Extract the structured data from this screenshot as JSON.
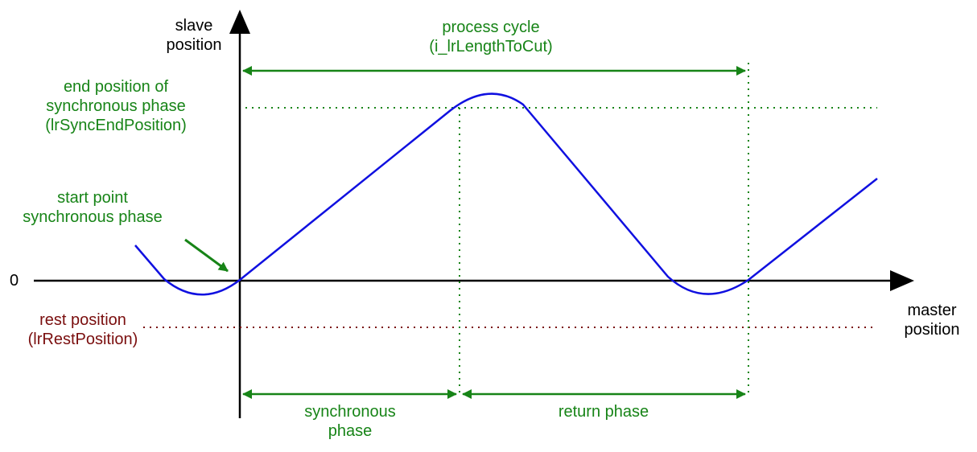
{
  "axes": {
    "y_label": [
      "slave",
      "position"
    ],
    "x_label": [
      "master",
      "position"
    ],
    "zero_label": "0"
  },
  "annotations": {
    "process_cycle": [
      "process cycle",
      "(i_lrLengthToCut)"
    ],
    "end_position": [
      "end position of",
      "synchronous phase",
      "(lrSyncEndPosition)"
    ],
    "start_point": [
      "start point",
      "synchronous phase"
    ],
    "rest_position": [
      "rest position",
      "(lrRestPosition)"
    ],
    "synchronous_phase": [
      "synchronous",
      "phase"
    ],
    "return_phase": "return phase"
  },
  "colors": {
    "curve": "#1010e0",
    "annotation": "#178417",
    "rest": "#7a0e0e",
    "axis": "#000000"
  }
}
